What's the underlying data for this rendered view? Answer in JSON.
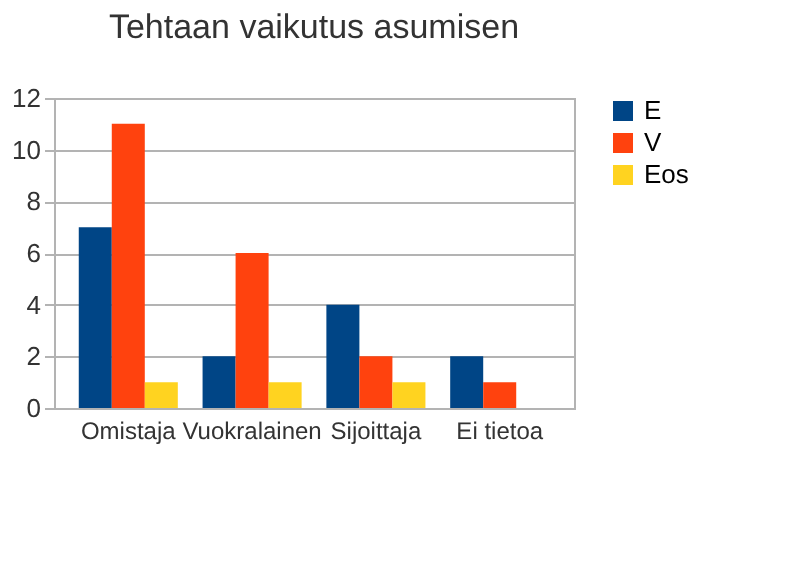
{
  "chart_data": {
    "type": "bar",
    "title": "Tehtaan vaikutus asumisen",
    "categories": [
      "Omistaja",
      "Vuokralainen",
      "Sijoittaja",
      "Ei tietoa"
    ],
    "series": [
      {
        "name": "E",
        "color": "#004586",
        "values": [
          7,
          2,
          4,
          2
        ]
      },
      {
        "name": "V",
        "color": "#ff420e",
        "values": [
          11,
          6,
          2,
          1
        ]
      },
      {
        "name": "Eos",
        "color": "#ffd320",
        "values": [
          1,
          1,
          1,
          0
        ]
      }
    ],
    "ylim": [
      0,
      12
    ],
    "yticks": [
      0,
      2,
      4,
      6,
      8,
      10,
      12
    ],
    "grid": "y",
    "legend": "right"
  }
}
